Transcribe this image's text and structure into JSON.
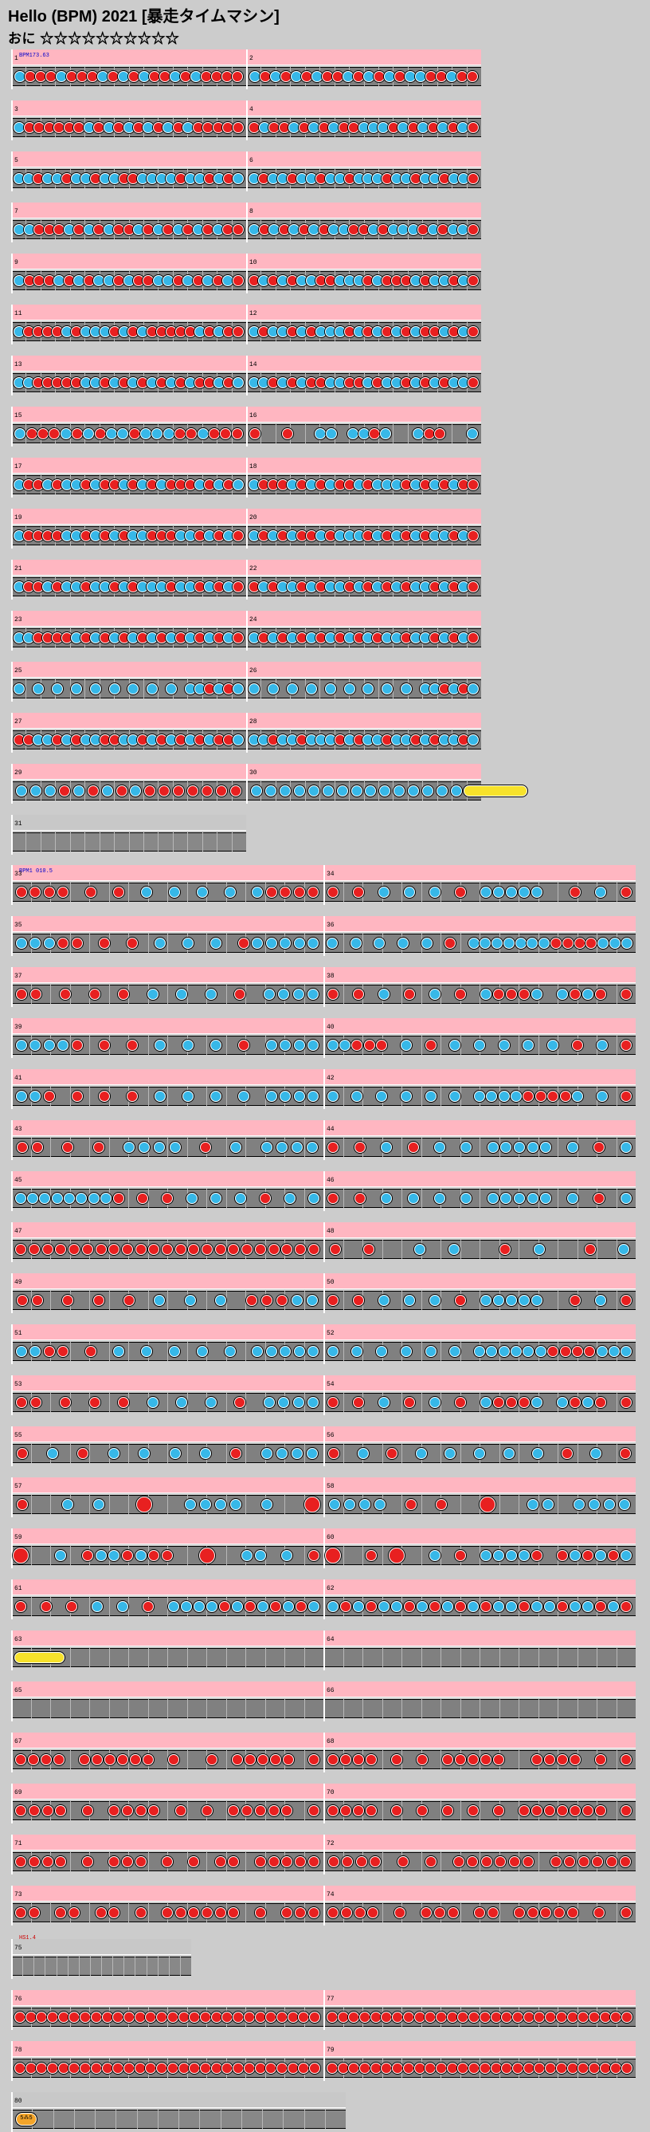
{
  "title": "Hello (BPM) 2021 [暴走タイムマシン]",
  "difficulty": {
    "label": "おに",
    "stars": "☆☆☆☆☆☆☆☆☆☆"
  },
  "section1": {
    "bpm_label": "BPM173.63",
    "bars": [
      {
        "num": "1",
        "pattern": "kdddkdddkdkdkddkdkdddd"
      },
      {
        "num": "2",
        "pattern": "kdkdkdkddkdkdkdkkddkdd"
      },
      {
        "num": "3",
        "pattern": "kddddddkdkdkdkdkdkddddd"
      },
      {
        "num": "4",
        "pattern": "dkddkdkdkddkkkdkdkdkdkd"
      },
      {
        "num": "5",
        "pattern": "kkdkkdkkdkkddkkkkdkkdkdk"
      },
      {
        "num": "6",
        "pattern": "kdkkdkkdkkdkkkdkkdkkdkkd"
      },
      {
        "num": "7",
        "pattern": "kkdddkdkdkddkdkdkdkdkdd"
      },
      {
        "num": "8",
        "pattern": "kdkdkdkdkkddkdkkkdkdkkd"
      },
      {
        "num": "9",
        "pattern": "kdddkdkdkkdkddkkdkdkdkd"
      },
      {
        "num": "10",
        "pattern": "dkdkdkkddkkkdkdddkdkkdkd"
      },
      {
        "num": "11",
        "pattern": "kddddkdkkkdkdkdddddkdkdd"
      },
      {
        "num": "12",
        "pattern": "kdkkdkdkkkdkdkdkdkddkdkd"
      },
      {
        "num": "13",
        "pattern": "kkdddddkkdkdkdkdkdkddkdk"
      },
      {
        "num": "14",
        "pattern": "kkdkdkddkkddkdkkdkdkdkkd"
      },
      {
        "num": "15",
        "pattern": "kdddkdkdkkdkkkddkddd"
      },
      {
        "num": "16",
        "pattern": "d..d..kk.kkdk..kdd..k"
      },
      {
        "num": "17",
        "pattern": "kddkdkkdkddkdkdkdddkdkdk"
      },
      {
        "num": "18",
        "pattern": "kdddkdkdkddkdkkkdkdkdkdd"
      },
      {
        "num": "19",
        "pattern": "kddddkkdkdkdkkdddkkdkdkd"
      },
      {
        "num": "20",
        "pattern": "kdkdkddkdkkkdkdkdkdkkdkd"
      },
      {
        "num": "21",
        "pattern": "kddkdkkdkkdkdkkkdkkdkdkd"
      },
      {
        "num": "22",
        "pattern": "dkdkkdkdkkdkdkdkdkkdkdkd"
      },
      {
        "num": "23",
        "pattern": "kkddddkdkdkdkdkdkdkdkdkd"
      },
      {
        "num": "24",
        "pattern": "kdkdkdkdkdkdkdkkdkkdkdkd"
      },
      {
        "num": "25",
        "pattern": "k.k.k.k.k.k.k.k.k.kkdkdk"
      },
      {
        "num": "26",
        "pattern": "k.k.k.k.k.k.k.k.k.kkdkdk"
      },
      {
        "num": "27",
        "pattern": "ddkkdkdkkddkkdkdkdkdkddk"
      },
      {
        "num": "28",
        "pattern": "kkdkkdkkkdkdkkdkkdkdkkdk"
      },
      {
        "num": "29",
        "pattern": "kkkdkdkdkddddddd"
      },
      {
        "num": "30",
        "pattern": "kkkkkkkkkkkkkkkR"
      },
      {
        "num": "31",
        "pattern": ""
      }
    ]
  },
  "section2": {
    "bpm_label": "BPM1 010.5",
    "speed_label": "HS1.4",
    "bars": [
      {
        "num": "33",
        "pattern": "dddd.d.d.k.k.k.k.kdddd"
      },
      {
        "num": "34",
        "pattern": "d.d.k.k.k.d.kkkkk..d.k.d"
      },
      {
        "num": "35",
        "pattern": "kkkdd.d.d.k.k.k.dkkkkk"
      },
      {
        "num": "36",
        "pattern": "k.k.k.k.k.d.kkkkkkkddddkkk"
      },
      {
        "num": "37",
        "pattern": "dd.d.d.d.k.k.k.d.kkkk"
      },
      {
        "num": "38",
        "pattern": "d.d.k.d.k.d.kdddk.kdkd.d"
      },
      {
        "num": "39",
        "pattern": "kkkkd.d.d.k.k.k.d.kkkk"
      },
      {
        "num": "40",
        "pattern": "kkddd.k.d.k.k.k.k.k.d.k.d"
      },
      {
        "num": "41",
        "pattern": "kkd.d.d.d.k.k.k.k.kkkk"
      },
      {
        "num": "42",
        "pattern": "k.k.k.k.k.k.kkkkddddk.k.d"
      },
      {
        "num": "43",
        "pattern": "dd.d.d.kkkk.d.k.kkkk"
      },
      {
        "num": "44",
        "pattern": "d.d.k.d.k.k.kkkkk.k.d.k"
      },
      {
        "num": "45",
        "pattern": "kkkkkkkkd.d.d.k.k.k.d.k.k"
      },
      {
        "num": "46",
        "pattern": "d.d.k.k.k.k.kkkkk.k.d.k"
      },
      {
        "num": "47",
        "pattern": "ddddddddddddddddddddddd"
      },
      {
        "num": "48",
        "pattern": "d.d..k.k..d.k..d.k"
      },
      {
        "num": "49",
        "pattern": "dd.d.d.d.k.k.k.dddkk"
      },
      {
        "num": "50",
        "pattern": "d.d.k.k.k.d.kkkkk..d.k.d"
      },
      {
        "num": "51",
        "pattern": "kkdd.d.k.k.k.k.k.kkkkk"
      },
      {
        "num": "52",
        "pattern": "k.k.k.k.k.k.kkkkkkddddkkk"
      },
      {
        "num": "53",
        "pattern": "dd.d.d.d.k.k.k.d.kkkk"
      },
      {
        "num": "54",
        "pattern": "d.d.k.d.k.d.kdddk.kdkd.d"
      },
      {
        "num": "55",
        "pattern": "d.k.d.k.k.k.k.d.kkkk"
      },
      {
        "num": "56",
        "pattern": "d.k.d.k.k.k.k.k.d.k.d"
      },
      {
        "num": "57",
        "pattern": "d..k.k..D..kkkk.k..D"
      },
      {
        "num": "58",
        "pattern": "kkkk.d.d..D..kk.kkkk"
      },
      {
        "num": "59",
        "pattern": "D..k.dkkdkdd..D..kk.k.d"
      },
      {
        "num": "60",
        "pattern": "D..d.D..k.d.kkkkd.dkdkdk"
      },
      {
        "num": "61",
        "pattern": "d.d.d.k.k.d.kkkkdkdkdkdk"
      },
      {
        "num": "62",
        "pattern": "kdkdkkdkdkdkdkkdkkdkkdkd"
      },
      {
        "num": "63",
        "pattern": "R"
      },
      {
        "num": "64",
        "pattern": ""
      },
      {
        "num": "65",
        "pattern": ""
      },
      {
        "num": "66",
        "pattern": ""
      },
      {
        "num": "67",
        "pattern": "dddd.dddddd.d..d.ddddd.d"
      },
      {
        "num": "68",
        "pattern": "dddd.d.d.ddddd..dddd.d.d"
      },
      {
        "num": "69",
        "pattern": "dddd.d.dddd.d.d.ddddd.d"
      },
      {
        "num": "70",
        "pattern": "dddd.d.d.d.d.d.ddddddd.d"
      },
      {
        "num": "71",
        "pattern": "dddd.d.ddd.d.d.dd.ddddd"
      },
      {
        "num": "72",
        "pattern": "dddd.d.d.dddddd.dddddd"
      },
      {
        "num": "73",
        "pattern": "dd.dd.dd.d.dddddd.d.ddd"
      },
      {
        "num": "74",
        "pattern": "dddd.d.ddd.dd.ddddd.d.d"
      }
    ]
  },
  "section3": {
    "bars": [
      {
        "num": "75",
        "pattern": ""
      },
      {
        "num": "76",
        "pattern": "dddddddddddddddddddddddddddd"
      },
      {
        "num": "77",
        "pattern": "dddddddddddddddddddddddddddd"
      },
      {
        "num": "78",
        "pattern": "dddddddddddddddddddddddddddd"
      },
      {
        "num": "79",
        "pattern": "dddddddddddddddddddddddddddd"
      },
      {
        "num": "80",
        "pattern": "B"
      }
    ],
    "balloon_label": "5⁂5"
  },
  "colors": {
    "don": "#e82020",
    "ka": "#37b8e8",
    "roll": "#f7e22b",
    "lane_pink": "#ffb6c1",
    "track": "#808080"
  }
}
